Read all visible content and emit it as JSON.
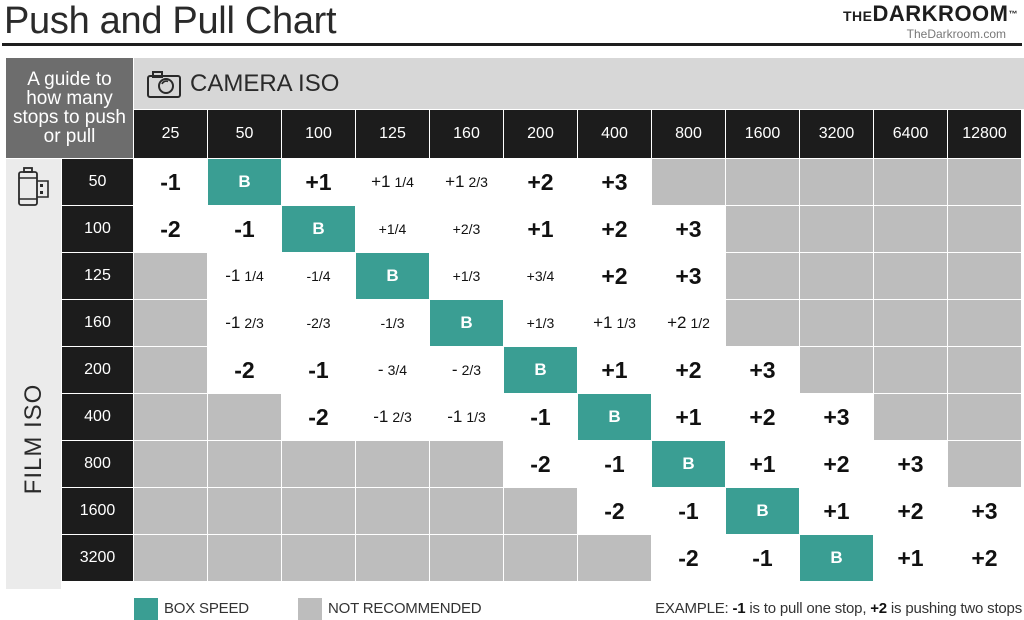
{
  "header": {
    "title": "Push and Pull Chart",
    "brand_the": "THE",
    "brand_name": "DARKROOM",
    "brand_tm": "™",
    "brand_site": "TheDarkroom.com"
  },
  "guide_text": "A guide to how many stops to push or pull",
  "camera_iso_label": "CAMERA ISO",
  "film_iso_label": "FILM ISO",
  "camera_isos": [
    "25",
    "50",
    "100",
    "125",
    "160",
    "200",
    "400",
    "800",
    "1600",
    "3200",
    "6400",
    "12800"
  ],
  "film_rows": [
    {
      "iso": "50",
      "cells": [
        {
          "t": "value",
          "v": "-1",
          "s": "big"
        },
        {
          "t": "box",
          "v": "B"
        },
        {
          "t": "value",
          "v": "+1",
          "s": "big"
        },
        {
          "t": "value",
          "v": "+1",
          "sub": "1/4",
          "s": "frac"
        },
        {
          "t": "value",
          "v": "+1",
          "sub": "2/3",
          "s": "frac"
        },
        {
          "t": "value",
          "v": "+2",
          "s": "big"
        },
        {
          "t": "value",
          "v": "+3",
          "s": "big"
        },
        {
          "t": "na"
        },
        {
          "t": "na"
        },
        {
          "t": "na"
        },
        {
          "t": "na"
        },
        {
          "t": "na"
        }
      ]
    },
    {
      "iso": "100",
      "cells": [
        {
          "t": "value",
          "v": "-2",
          "s": "big"
        },
        {
          "t": "value",
          "v": "-1",
          "s": "big"
        },
        {
          "t": "box",
          "v": "B"
        },
        {
          "t": "value",
          "v": "+1/4",
          "s": "small"
        },
        {
          "t": "value",
          "v": "+2/3",
          "s": "small"
        },
        {
          "t": "value",
          "v": "+1",
          "s": "big"
        },
        {
          "t": "value",
          "v": "+2",
          "s": "big"
        },
        {
          "t": "value",
          "v": "+3",
          "s": "big"
        },
        {
          "t": "na"
        },
        {
          "t": "na"
        },
        {
          "t": "na"
        },
        {
          "t": "na"
        }
      ]
    },
    {
      "iso": "125",
      "cells": [
        {
          "t": "na"
        },
        {
          "t": "value",
          "v": "-1",
          "sub": "1/4",
          "s": "frac"
        },
        {
          "t": "value",
          "v": "-1/4",
          "s": "small"
        },
        {
          "t": "box",
          "v": "B"
        },
        {
          "t": "value",
          "v": "+1/3",
          "s": "small"
        },
        {
          "t": "value",
          "v": "+3/4",
          "s": "small"
        },
        {
          "t": "value",
          "v": "+2",
          "s": "big"
        },
        {
          "t": "value",
          "v": "+3",
          "s": "big"
        },
        {
          "t": "na"
        },
        {
          "t": "na"
        },
        {
          "t": "na"
        },
        {
          "t": "na"
        }
      ]
    },
    {
      "iso": "160",
      "cells": [
        {
          "t": "na"
        },
        {
          "t": "value",
          "v": "-1",
          "sub": "2/3",
          "s": "frac"
        },
        {
          "t": "value",
          "v": "-2/3",
          "s": "small"
        },
        {
          "t": "value",
          "v": "-1/3",
          "s": "small"
        },
        {
          "t": "box",
          "v": "B"
        },
        {
          "t": "value",
          "v": "+1/3",
          "s": "small"
        },
        {
          "t": "value",
          "v": "+1",
          "sub": "1/3",
          "s": "frac"
        },
        {
          "t": "value",
          "v": "+2",
          "sub": "1/2",
          "s": "frac"
        },
        {
          "t": "na"
        },
        {
          "t": "na"
        },
        {
          "t": "na"
        },
        {
          "t": "na"
        }
      ]
    },
    {
      "iso": "200",
      "cells": [
        {
          "t": "na"
        },
        {
          "t": "value",
          "v": "-2",
          "s": "big"
        },
        {
          "t": "value",
          "v": "-1",
          "s": "big"
        },
        {
          "t": "value",
          "v": "-",
          "sub": "3/4",
          "s": "frac"
        },
        {
          "t": "value",
          "v": "-",
          "sub": "2/3",
          "s": "frac"
        },
        {
          "t": "box",
          "v": "B"
        },
        {
          "t": "value",
          "v": "+1",
          "s": "big"
        },
        {
          "t": "value",
          "v": "+2",
          "s": "big"
        },
        {
          "t": "value",
          "v": "+3",
          "s": "big"
        },
        {
          "t": "na"
        },
        {
          "t": "na"
        },
        {
          "t": "na"
        }
      ]
    },
    {
      "iso": "400",
      "cells": [
        {
          "t": "na"
        },
        {
          "t": "na"
        },
        {
          "t": "value",
          "v": "-2",
          "s": "big"
        },
        {
          "t": "value",
          "v": "-1",
          "sub": "2/3",
          "s": "frac"
        },
        {
          "t": "value",
          "v": "-1",
          "sub": "1/3",
          "s": "frac"
        },
        {
          "t": "value",
          "v": "-1",
          "s": "big"
        },
        {
          "t": "box",
          "v": "B"
        },
        {
          "t": "value",
          "v": "+1",
          "s": "big"
        },
        {
          "t": "value",
          "v": "+2",
          "s": "big"
        },
        {
          "t": "value",
          "v": "+3",
          "s": "big"
        },
        {
          "t": "na"
        },
        {
          "t": "na"
        }
      ]
    },
    {
      "iso": "800",
      "cells": [
        {
          "t": "na"
        },
        {
          "t": "na"
        },
        {
          "t": "na"
        },
        {
          "t": "na"
        },
        {
          "t": "na"
        },
        {
          "t": "value",
          "v": "-2",
          "s": "big"
        },
        {
          "t": "value",
          "v": "-1",
          "s": "big"
        },
        {
          "t": "box",
          "v": "B"
        },
        {
          "t": "value",
          "v": "+1",
          "s": "big"
        },
        {
          "t": "value",
          "v": "+2",
          "s": "big"
        },
        {
          "t": "value",
          "v": "+3",
          "s": "big"
        },
        {
          "t": "na"
        }
      ]
    },
    {
      "iso": "1600",
      "cells": [
        {
          "t": "na"
        },
        {
          "t": "na"
        },
        {
          "t": "na"
        },
        {
          "t": "na"
        },
        {
          "t": "na"
        },
        {
          "t": "na"
        },
        {
          "t": "value",
          "v": "-2",
          "s": "big"
        },
        {
          "t": "value",
          "v": "-1",
          "s": "big"
        },
        {
          "t": "box",
          "v": "B"
        },
        {
          "t": "value",
          "v": "+1",
          "s": "big"
        },
        {
          "t": "value",
          "v": "+2",
          "s": "big"
        },
        {
          "t": "value",
          "v": "+3",
          "s": "big"
        }
      ]
    },
    {
      "iso": "3200",
      "cells": [
        {
          "t": "na"
        },
        {
          "t": "na"
        },
        {
          "t": "na"
        },
        {
          "t": "na"
        },
        {
          "t": "na"
        },
        {
          "t": "na"
        },
        {
          "t": "na"
        },
        {
          "t": "value",
          "v": "-2",
          "s": "big"
        },
        {
          "t": "value",
          "v": "-1",
          "s": "big"
        },
        {
          "t": "box",
          "v": "B"
        },
        {
          "t": "value",
          "v": "+1",
          "s": "big"
        },
        {
          "t": "value",
          "v": "+2",
          "s": "big"
        }
      ]
    }
  ],
  "legend": {
    "box_speed_label": "BOX SPEED",
    "not_recommended_label": "NOT RECOMMENDED",
    "example_prefix": "EXAMPLE: ",
    "example_pull": "-1",
    "example_mid": " is to pull one stop, ",
    "example_push": "+2",
    "example_suffix": " is pushing two stops"
  },
  "colors": {
    "box_speed": "#3a9e93",
    "not_recommended": "#bdbdbd",
    "header_dark": "#1c1c1c",
    "guide_bg": "#6d6d6d",
    "camera_band": "#d7d7d7"
  },
  "icons": [
    "camera-icon",
    "film-canister-icon"
  ]
}
